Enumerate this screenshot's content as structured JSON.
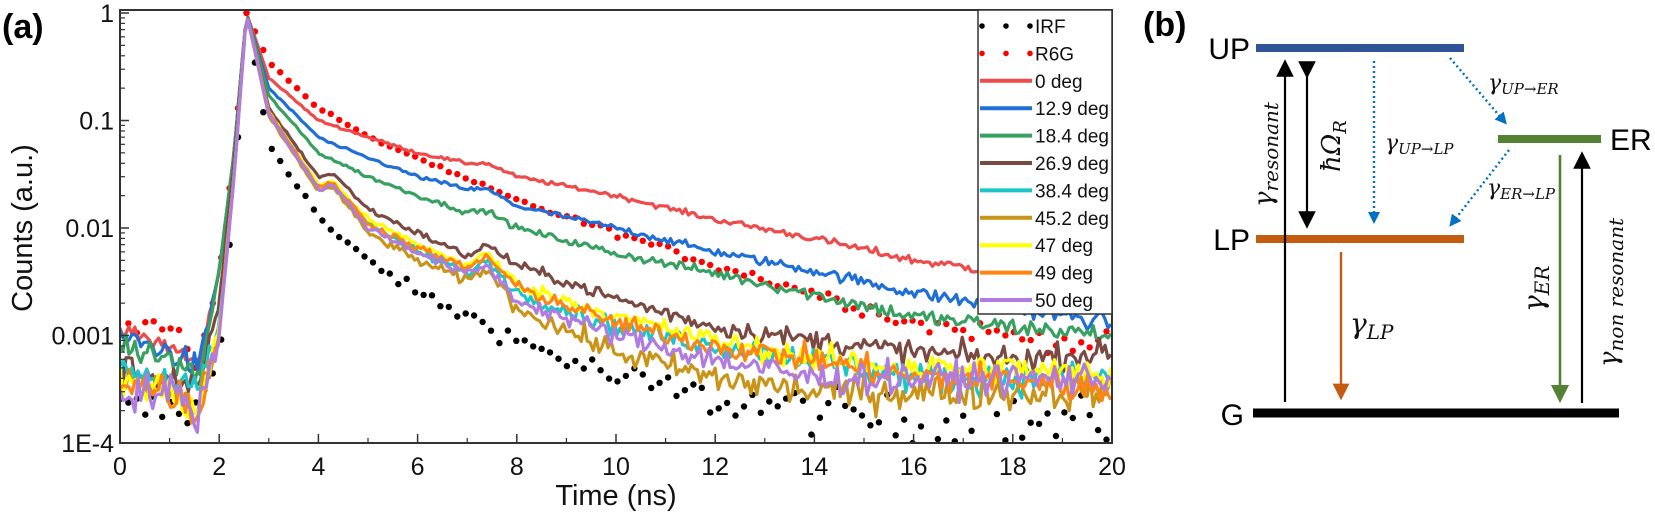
{
  "panel_a_label": "(a)",
  "panel_b_label": "(b)",
  "chart_data": {
    "type": "line",
    "title": "",
    "xlabel": "Time (ns)",
    "ylabel": "Counts (a.u.)",
    "xlim": [
      0,
      20
    ],
    "ylim": [
      0.0001,
      1
    ],
    "yscale": "log",
    "grid": false,
    "legend_position": "top-right",
    "x_ticks": [
      "0",
      "2",
      "4",
      "6",
      "8",
      "10",
      "12",
      "14",
      "16",
      "18",
      "20"
    ],
    "y_ticks": [
      {
        "value": 1,
        "label": "1"
      },
      {
        "value": 0.1,
        "label": "0.1"
      },
      {
        "value": 0.01,
        "label": "0.01"
      },
      {
        "value": 0.001,
        "label": "0.001"
      },
      {
        "value": 0.0001,
        "label": "1E-4"
      }
    ],
    "x": [
      0,
      1,
      1.6,
      2,
      2.3,
      2.55,
      3,
      4,
      4.3,
      5,
      6,
      7,
      7.4,
      8,
      10,
      12,
      14,
      16,
      18,
      20
    ],
    "series": [
      {
        "name": "IRF",
        "style": "dotted",
        "color": "#000000",
        "values": [
          0.0002,
          0.0002,
          0.0002,
          0.0006,
          0.02,
          1,
          0.06,
          0.013,
          0.009,
          0.005,
          0.0025,
          0.0015,
          0.0013,
          0.0009,
          0.0004,
          0.00025,
          0.0002,
          0.00015,
          0.00015,
          0.00015
        ]
      },
      {
        "name": "R6G",
        "style": "dotted",
        "color": "#ff0000",
        "values": [
          0.0012,
          0.0012,
          0.0006,
          0.004,
          0.05,
          1,
          0.35,
          0.13,
          0.11,
          0.07,
          0.045,
          0.028,
          0.024,
          0.018,
          0.009,
          0.0045,
          0.0025,
          0.0013,
          0.001,
          0.0008
        ]
      },
      {
        "name": "0 deg",
        "style": "solid",
        "color": "#ee4b4b",
        "values": [
          0.0011,
          0.0008,
          0.0005,
          0.004,
          0.05,
          1,
          0.25,
          0.1,
          0.09,
          0.07,
          0.05,
          0.04,
          0.04,
          0.03,
          0.02,
          0.012,
          0.008,
          0.005,
          0.0038,
          0.0025
        ]
      },
      {
        "name": "12.9 deg",
        "style": "solid",
        "color": "#1f6fd6",
        "values": [
          0.001,
          0.0007,
          0.0005,
          0.004,
          0.05,
          1,
          0.2,
          0.07,
          0.06,
          0.045,
          0.03,
          0.023,
          0.023,
          0.016,
          0.01,
          0.006,
          0.004,
          0.0025,
          0.0018,
          0.0013
        ]
      },
      {
        "name": "18.4 deg",
        "style": "solid",
        "color": "#38a060",
        "values": [
          0.0008,
          0.0006,
          0.0004,
          0.004,
          0.05,
          1,
          0.17,
          0.05,
          0.043,
          0.03,
          0.02,
          0.014,
          0.0145,
          0.01,
          0.0058,
          0.0038,
          0.0024,
          0.0015,
          0.0012,
          0.001
        ]
      },
      {
        "name": "26.9 deg",
        "style": "solid",
        "color": "#7a4a42",
        "values": [
          0.0005,
          0.0004,
          0.0003,
          0.002,
          0.04,
          1,
          0.13,
          0.03,
          0.032,
          0.015,
          0.009,
          0.0055,
          0.007,
          0.0045,
          0.0022,
          0.0012,
          0.0009,
          0.0007,
          0.0006,
          0.0007
        ]
      },
      {
        "name": "38.4 deg",
        "style": "solid",
        "color": "#1cc6c8",
        "values": [
          0.0005,
          0.0004,
          0.0003,
          0.0012,
          0.03,
          1,
          0.12,
          0.025,
          0.027,
          0.011,
          0.006,
          0.0038,
          0.005,
          0.0025,
          0.0012,
          0.0008,
          0.0006,
          0.0004,
          0.0004,
          0.0004
        ]
      },
      {
        "name": "45.2 deg",
        "style": "solid",
        "color": "#c99418",
        "values": [
          0.0004,
          0.0003,
          0.0002,
          0.001,
          0.03,
          1,
          0.11,
          0.022,
          0.024,
          0.009,
          0.005,
          0.0032,
          0.0042,
          0.0018,
          0.0007,
          0.0004,
          0.0003,
          0.0003,
          0.0003,
          0.0003
        ]
      },
      {
        "name": "47 deg",
        "style": "solid",
        "color": "#ffff00",
        "values": [
          0.0004,
          0.0003,
          0.0002,
          0.0012,
          0.03,
          1,
          0.12,
          0.025,
          0.027,
          0.012,
          0.007,
          0.0045,
          0.0058,
          0.003,
          0.0015,
          0.0009,
          0.0006,
          0.0005,
          0.0005,
          0.0004
        ]
      },
      {
        "name": "49 deg",
        "style": "solid",
        "color": "#ff8412",
        "values": [
          0.0004,
          0.0003,
          0.0002,
          0.0011,
          0.03,
          1,
          0.12,
          0.024,
          0.026,
          0.011,
          0.0065,
          0.0042,
          0.0055,
          0.0028,
          0.0013,
          0.0008,
          0.0006,
          0.0004,
          0.0004,
          0.0003
        ]
      },
      {
        "name": "50 deg",
        "style": "solid",
        "color": "#b07ce0",
        "values": [
          0.0003,
          0.0003,
          0.0002,
          0.001,
          0.03,
          1,
          0.115,
          0.023,
          0.025,
          0.01,
          0.006,
          0.0037,
          0.0045,
          0.0021,
          0.001,
          0.0006,
          0.0004,
          0.0004,
          0.0004,
          0.0004
        ]
      }
    ]
  },
  "diagram": {
    "levels": {
      "UP": {
        "label": "UP",
        "color": "#2f5597"
      },
      "LP": {
        "label": "LP",
        "color": "#c55a11"
      },
      "ER": {
        "label": "ER",
        "color": "#548235"
      },
      "G": {
        "label": "G",
        "color": "#000000"
      }
    },
    "rates": {
      "resonant": {
        "symbol": "γ",
        "sub": "resonant"
      },
      "rabi": {
        "symbol": "ħΩ",
        "sub": "R"
      },
      "up_lp": {
        "symbol": "γ",
        "sub": "UP→LP"
      },
      "up_er": {
        "symbol": "γ",
        "sub": "UP→ER"
      },
      "er_lp": {
        "symbol": "γ",
        "sub": "ER→LP"
      },
      "lp": {
        "symbol": "γ",
        "sub": "LP"
      },
      "er": {
        "symbol": "γ",
        "sub": "ER"
      },
      "nonres": {
        "symbol": "γ",
        "sub": "non resonant"
      }
    },
    "arrow_blue": "#0070c0"
  }
}
